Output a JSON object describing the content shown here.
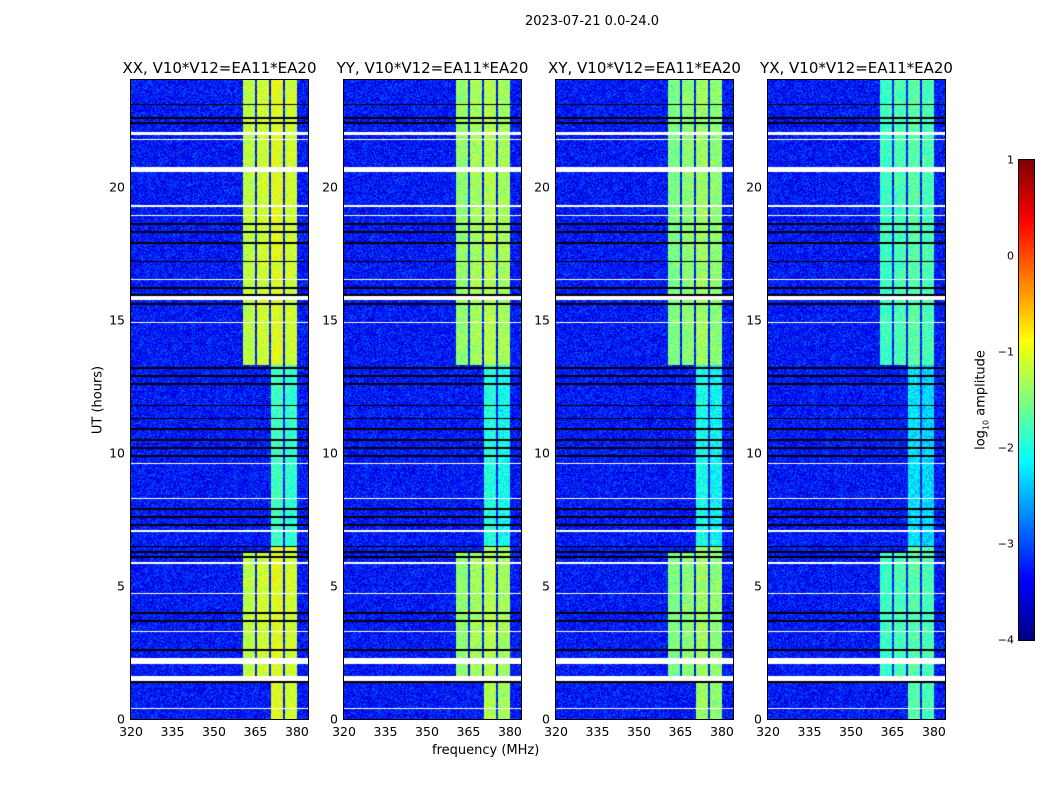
{
  "suptitle": "2023-07-21 0.0-24.0",
  "chart_data": {
    "type": "heatmap",
    "panels": [
      {
        "title": "XX, V10*V12=EA11*EA20",
        "strength": 1.0
      },
      {
        "title": "YY, V10*V12=EA11*EA20",
        "strength": 0.9
      },
      {
        "title": "XY, V10*V12=EA11*EA20",
        "strength": 0.85
      },
      {
        "title": "YX, V10*V12=EA11*EA20",
        "strength": 0.7
      }
    ],
    "xlabel": "frequency (MHz)",
    "ylabel": "UT (hours)",
    "xlim": [
      320,
      384
    ],
    "ylim": [
      0,
      24
    ],
    "xticks": [
      320,
      335,
      350,
      365,
      380
    ],
    "yticks": [
      0,
      5,
      10,
      15,
      20
    ],
    "colorbar": {
      "label": "log10 amplitude",
      "label_main": "log",
      "label_sub": "10",
      "label_rest": " amplitude",
      "range": [
        -4,
        1
      ],
      "ticks": [
        1,
        0,
        -1,
        -2,
        -3,
        -4
      ],
      "tick_labels": [
        "1",
        "0",
        "−1",
        "−2",
        "−3",
        "−4"
      ],
      "colormap": "jet"
    },
    "background_log_amplitude": -3.3,
    "bands_mhz": [
      [
        360.4,
        364.8
      ],
      [
        365.5,
        369.8
      ],
      [
        370.5,
        374.9
      ],
      [
        375.6,
        380.0
      ]
    ],
    "band_levels_log_amplitude": [
      -1.2,
      -1.1,
      -1.0,
      -1.1
    ],
    "left_band_active_hours": [
      [
        1.5,
        6.3
      ],
      [
        13.3,
        24
      ]
    ],
    "right_band_weak_hours": [
      [
        6.5,
        13.3
      ]
    ],
    "flagged_white_hours": [
      [
        20.55,
        20.75
      ],
      [
        21.95,
        22.05
      ],
      [
        21.75,
        21.8
      ],
      [
        19.25,
        19.32
      ],
      [
        15.75,
        15.9
      ],
      [
        18.9,
        18.95
      ],
      [
        16.5,
        16.55
      ],
      [
        14.9,
        14.93
      ],
      [
        9.6,
        9.65
      ],
      [
        8.3,
        8.33
      ],
      [
        7.05,
        7.1
      ],
      [
        5.85,
        5.9
      ],
      [
        4.7,
        4.75
      ],
      [
        2.1,
        2.3
      ],
      [
        1.45,
        1.65
      ],
      [
        0.4,
        0.43
      ],
      [
        3.3,
        3.33
      ]
    ],
    "flagged_black_hours": [
      23.1,
      22.6,
      22.4,
      18.6,
      18.3,
      17.9,
      17.2,
      16.2,
      15.95,
      15.6,
      13.2,
      12.9,
      12.6,
      11.8,
      11.3,
      10.9,
      10.5,
      10.2,
      9.9,
      7.9,
      7.6,
      7.3,
      6.5,
      6.3,
      6.1,
      4.0,
      3.7,
      2.6,
      1.4
    ]
  }
}
